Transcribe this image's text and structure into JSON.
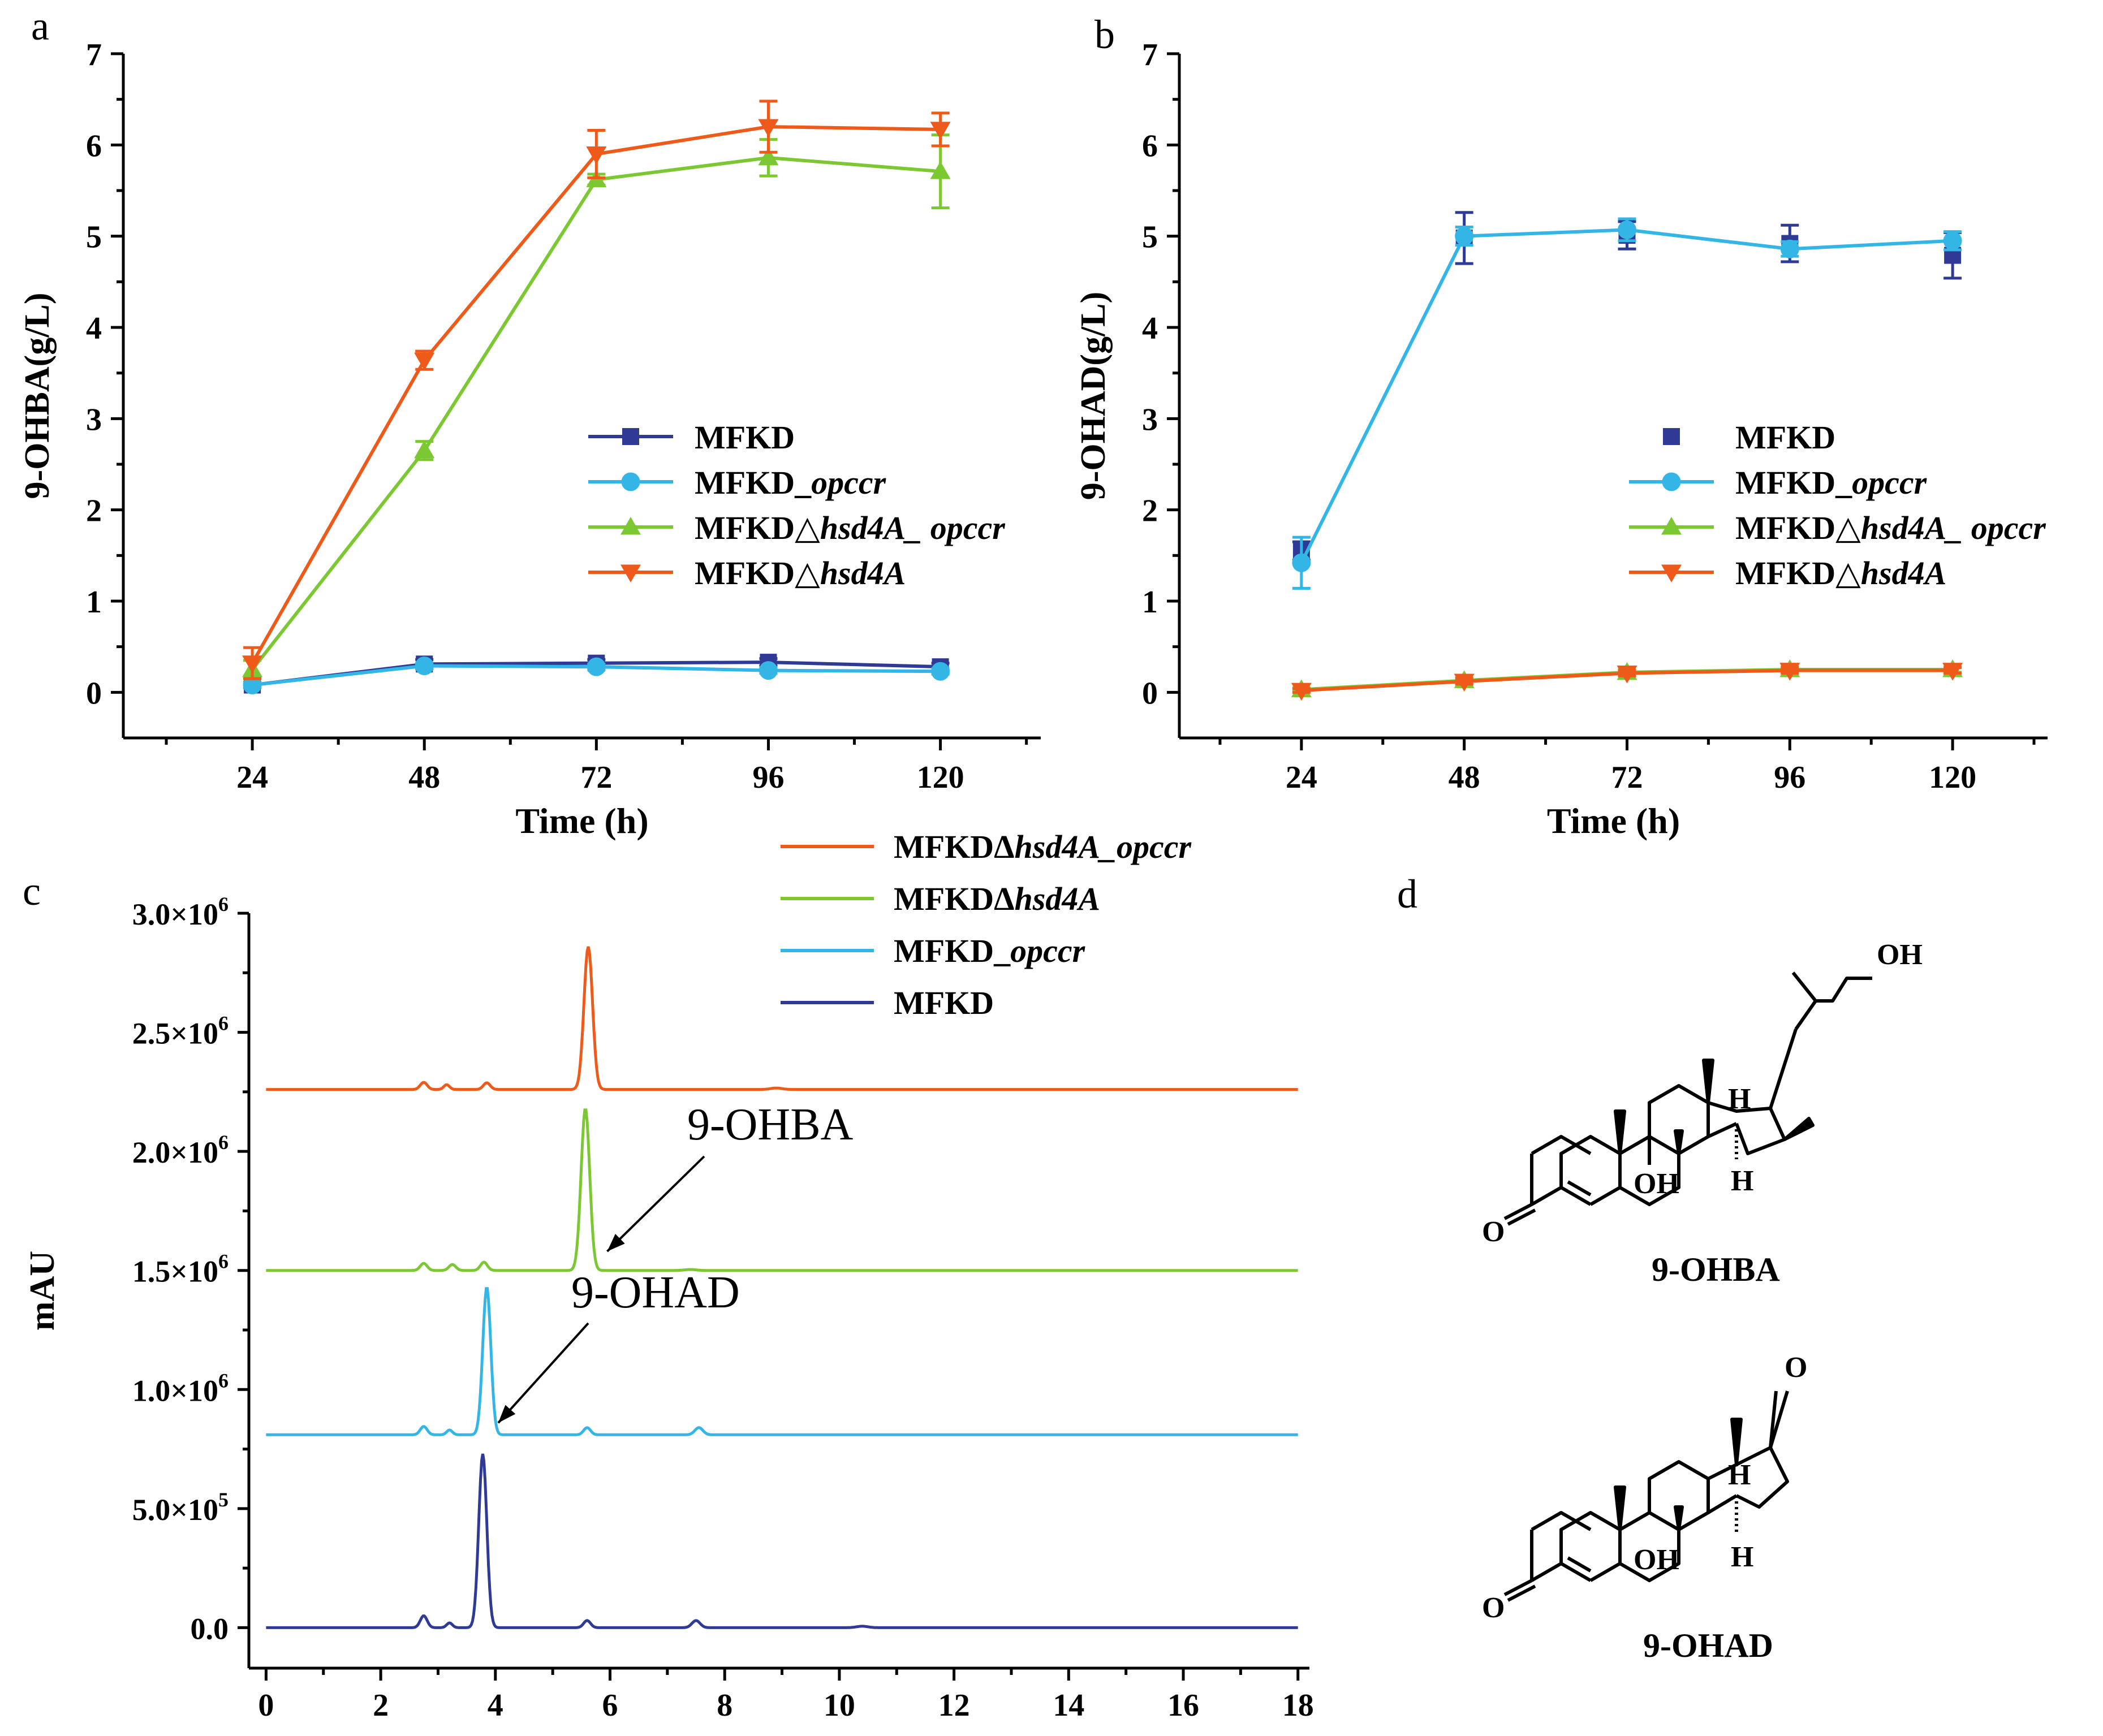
{
  "figure": {
    "panel_letters": [
      "a",
      "b",
      "c",
      "d"
    ]
  },
  "colors": {
    "MFKD": "#2e3a94",
    "MFKD_opccr": "#33b6e6",
    "MFKD_hsd4A_opccr": "#7cc832",
    "MFKD_hsd4A": "#ee5a1a"
  },
  "chart_data": [
    {
      "panel": "a",
      "type": "line",
      "xlabel": "Time (h)",
      "ylabel": "9-OHBA(g/L)",
      "x": [
        24,
        48,
        72,
        96,
        120
      ],
      "xlim": [
        6,
        134
      ],
      "ylim": [
        -0.5,
        7
      ],
      "yticks": [
        0,
        1,
        2,
        3,
        4,
        5,
        6,
        7
      ],
      "xticks": [
        24,
        48,
        72,
        96,
        120
      ],
      "legend_position": "center-right",
      "series": [
        {
          "key": "MFKD",
          "name": "MFKD",
          "name_italic": "",
          "marker": "square",
          "show_line": true,
          "values": [
            0.08,
            0.31,
            0.32,
            0.33,
            0.28
          ],
          "err": [
            0.03,
            0.05,
            0.04,
            0.04,
            0.04
          ]
        },
        {
          "key": "MFKD_opccr",
          "name": "MFKD_",
          "name_italic": "opccr",
          "marker": "circle",
          "show_line": true,
          "values": [
            0.08,
            0.29,
            0.28,
            0.24,
            0.23
          ],
          "err": [
            0.03,
            0.03,
            0.03,
            0.03,
            0.03
          ]
        },
        {
          "key": "MFKD_hsd4A_opccr",
          "name": "MFKD△",
          "name_italic": "hsd4A_ opccr",
          "marker": "triangle-up",
          "show_line": true,
          "values": [
            0.25,
            2.65,
            5.62,
            5.86,
            5.71
          ],
          "err": [
            0.1,
            0.1,
            0.06,
            0.2,
            0.4
          ]
        },
        {
          "key": "MFKD_hsd4A",
          "name": "MFKD△",
          "name_italic": "hsd4A",
          "marker": "triangle-down",
          "show_line": true,
          "values": [
            0.32,
            3.64,
            5.9,
            6.2,
            6.17
          ],
          "err": [
            0.17,
            0.1,
            0.26,
            0.28,
            0.18
          ]
        }
      ]
    },
    {
      "panel": "b",
      "type": "line",
      "xlabel": "Time (h)",
      "ylabel": "9-OHAD(g/L)",
      "x": [
        24,
        48,
        72,
        96,
        120
      ],
      "xlim": [
        6,
        134
      ],
      "ylim": [
        -0.5,
        7
      ],
      "yticks": [
        0,
        1,
        2,
        3,
        4,
        5,
        6,
        7
      ],
      "xticks": [
        24,
        48,
        72,
        96,
        120
      ],
      "legend_position": "center-right",
      "series": [
        {
          "key": "MFKD",
          "name": "MFKD",
          "name_italic": "",
          "marker": "square",
          "show_line": false,
          "values": [
            1.55,
            4.98,
            5.01,
            4.92,
            4.79
          ],
          "err": [
            0.1,
            0.28,
            0.15,
            0.2,
            0.25
          ]
        },
        {
          "key": "MFKD_opccr",
          "name": "MFKD_",
          "name_italic": "opccr",
          "marker": "circle",
          "show_line": true,
          "values": [
            1.42,
            5.0,
            5.07,
            4.86,
            4.95
          ],
          "err": [
            0.28,
            0.1,
            0.12,
            0.08,
            0.1
          ]
        },
        {
          "key": "MFKD_hsd4A_opccr",
          "name": "MFKD△",
          "name_italic": "hsd4A_ opccr",
          "marker": "triangle-up",
          "show_line": true,
          "values": [
            0.03,
            0.13,
            0.22,
            0.25,
            0.25
          ],
          "err": [
            0.02,
            0.03,
            0.03,
            0.03,
            0.03
          ]
        },
        {
          "key": "MFKD_hsd4A",
          "name": "MFKD△",
          "name_italic": "hsd4A",
          "marker": "triangle-down",
          "show_line": true,
          "values": [
            0.02,
            0.12,
            0.21,
            0.24,
            0.24
          ],
          "err": [
            0.02,
            0.03,
            0.03,
            0.03,
            0.03
          ]
        }
      ]
    },
    {
      "panel": "c",
      "type": "line",
      "ylabel": "mAU",
      "xlim": [
        -0.3,
        18.2
      ],
      "ylim": [
        -0.17,
        3.0
      ],
      "xticks": [
        0,
        2,
        4,
        6,
        8,
        10,
        12,
        14,
        16,
        18
      ],
      "ytick_labels": [
        {
          "value": 0.0,
          "label": "0.0"
        },
        {
          "value": 0.5,
          "label": "5.0×10",
          "exp": "5"
        },
        {
          "value": 1.0,
          "label": "1.0×10",
          "exp": "6"
        },
        {
          "value": 1.5,
          "label": "1.5×10",
          "exp": "6"
        },
        {
          "value": 2.0,
          "label": "2.0×10",
          "exp": "6"
        },
        {
          "value": 2.5,
          "label": "2.5×10",
          "exp": "6"
        },
        {
          "value": 3.0,
          "label": "3.0×10",
          "exp": "6"
        }
      ],
      "legend_position": "top-center",
      "series": [
        {
          "key": "MFKD_hsd4A",
          "name": "MFKDΔ",
          "name_italic": "hsd4A_opccr",
          "baseline": 2.26,
          "peaks": [
            {
              "x": 2.75,
              "h": 0.03,
              "w": 0.06
            },
            {
              "x": 3.15,
              "h": 0.02,
              "w": 0.05
            },
            {
              "x": 3.85,
              "h": 0.028,
              "w": 0.06
            },
            {
              "x": 5.62,
              "h": 0.6,
              "w": 0.075
            },
            {
              "x": 8.9,
              "h": 0.006,
              "w": 0.1
            }
          ]
        },
        {
          "key": "MFKD_hsd4A_opccr",
          "name": "MFKDΔ",
          "name_italic": "hsd4A",
          "baseline": 1.5,
          "peaks": [
            {
              "x": 2.75,
              "h": 0.03,
              "w": 0.06
            },
            {
              "x": 3.25,
              "h": 0.025,
              "w": 0.06
            },
            {
              "x": 3.8,
              "h": 0.035,
              "w": 0.06
            },
            {
              "x": 5.57,
              "h": 0.68,
              "w": 0.075
            },
            {
              "x": 7.4,
              "h": 0.004,
              "w": 0.1
            }
          ]
        },
        {
          "key": "MFKD_opccr",
          "name": "MFKD_",
          "name_italic": "opccr",
          "baseline": 0.81,
          "peaks": [
            {
              "x": 2.75,
              "h": 0.035,
              "w": 0.06
            },
            {
              "x": 3.2,
              "h": 0.02,
              "w": 0.05
            },
            {
              "x": 3.85,
              "h": 0.62,
              "w": 0.07
            },
            {
              "x": 5.6,
              "h": 0.03,
              "w": 0.06
            },
            {
              "x": 7.55,
              "h": 0.03,
              "w": 0.07
            }
          ]
        },
        {
          "key": "MFKD",
          "name": "MFKD",
          "name_italic": "",
          "baseline": 0.0,
          "peaks": [
            {
              "x": 2.75,
              "h": 0.05,
              "w": 0.06
            },
            {
              "x": 3.2,
              "h": 0.02,
              "w": 0.05
            },
            {
              "x": 3.78,
              "h": 0.73,
              "w": 0.07
            },
            {
              "x": 5.6,
              "h": 0.03,
              "w": 0.06
            },
            {
              "x": 7.5,
              "h": 0.03,
              "w": 0.07
            },
            {
              "x": 10.4,
              "h": 0.006,
              "w": 0.1
            }
          ]
        }
      ],
      "annotations": [
        {
          "text": "9-OHBA",
          "target_x": 5.95,
          "target_y": 1.58
        },
        {
          "text": "9-OHAD",
          "target_x": 4.05,
          "target_y": 0.86
        }
      ]
    }
  ],
  "structures": {
    "ohba_label": "9-OHBA",
    "ohad_label": "9-OHAD",
    "atoms": {
      "OH": "OH",
      "O": "O",
      "H": "H"
    }
  }
}
